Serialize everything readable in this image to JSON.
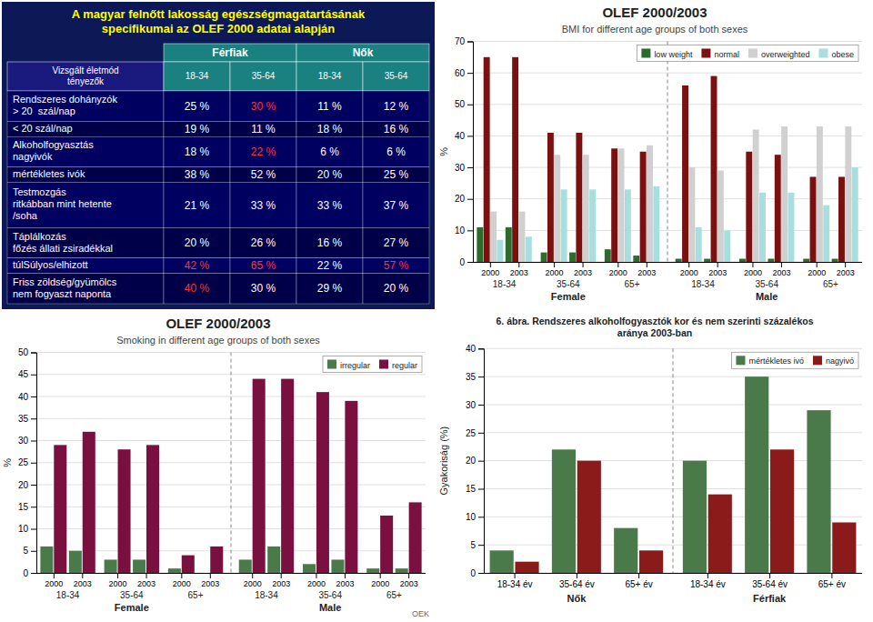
{
  "chart_data": [
    {
      "type": "table",
      "title": "A magyar felnőtt lakosság egészségmagatartásának\nspecifikumai az OLEF 2000 adatai alapján",
      "column_groups": [
        "Férfiak",
        "Nők"
      ],
      "columns": [
        "Vizsgált életmód\ntényezők",
        "18-34",
        "35-64",
        "18-34",
        "35-64"
      ],
      "rows": [
        {
          "label": "Rendszeres dohányzók\n> 20  szál/nap",
          "values": [
            25,
            30,
            11,
            12
          ],
          "value_labels": [
            "25 %",
            "30 %",
            "11 %",
            "12 %"
          ],
          "colors": [
            "#ffffff",
            "#ff3333",
            "#ffffff",
            "#ffffff"
          ]
        },
        {
          "label": "< 20 szál/nap",
          "values": [
            19,
            11,
            18,
            16
          ],
          "value_labels": [
            "19 %",
            "11 %",
            "18 %",
            "16 %"
          ],
          "colors": [
            "#ffffff",
            "#ffffff",
            "#ffffff",
            "#ffffff"
          ]
        },
        {
          "label": "Alkoholfogyasztás\nnagyivók",
          "values": [
            18,
            22,
            6,
            6
          ],
          "value_labels": [
            "18 %",
            "22 %",
            "6 %",
            "6 %"
          ],
          "colors": [
            "#ffffff",
            "#ff3333",
            "#ffffff",
            "#ffffff"
          ]
        },
        {
          "label": "mértékletes ivók",
          "values": [
            38,
            52,
            20,
            25
          ],
          "value_labels": [
            "38 %",
            "52 %",
            "20 %",
            "25 %"
          ],
          "colors": [
            "#ffffff",
            "#ffffff",
            "#ffffff",
            "#ffffff"
          ]
        },
        {
          "label": "Testmozgás\nritkábban mint hetente\n/soha",
          "values": [
            21,
            33,
            33,
            37
          ],
          "value_labels": [
            "21 %",
            "33 %",
            "33 %",
            "37 %"
          ],
          "colors": [
            "#ffffff",
            "#ffffff",
            "#ffffff",
            "#ffffff"
          ]
        },
        {
          "label": "Táplálkozás\nfőzés állati zsiradékkal",
          "values": [
            20,
            26,
            16,
            27
          ],
          "value_labels": [
            "20 %",
            "26 %",
            "16 %",
            "27 %"
          ],
          "colors": [
            "#ffffff",
            "#ffffff",
            "#ffffff",
            "#ffffff"
          ]
        },
        {
          "label": "túlSúlyos/elhizott",
          "values": [
            42,
            65,
            22,
            57
          ],
          "value_labels": [
            "42 %",
            "65 %",
            "22 %",
            "57 %"
          ],
          "colors": [
            "#ff3333",
            "#ff3333",
            "#ffffff",
            "#ff3333"
          ]
        },
        {
          "label": "Friss zöldség/gyümölcs\nnem fogyaszt naponta",
          "values": [
            40,
            30,
            29,
            20
          ],
          "value_labels": [
            "40 %",
            "30 %",
            "29 %",
            "20 %"
          ],
          "colors": [
            "#ff3333",
            "#ffffff",
            "#ffffff",
            "#ffffff"
          ]
        }
      ]
    },
    {
      "type": "bar",
      "title": "OLEF 2000/2003",
      "subtitle": "BMI for different age groups of both sexes",
      "y_label": "%",
      "categories": [
        "2000",
        "2003",
        "2000",
        "2003",
        "2000",
        "2003",
        "2000",
        "2003",
        "2000",
        "2003",
        "2000",
        "2003"
      ],
      "age_groups": [
        "18-34",
        "35-64",
        "65+",
        "18-34",
        "35-64",
        "65+"
      ],
      "groups": [
        "Female",
        "Male"
      ],
      "series": [
        {
          "name": "low weight",
          "color": "#2d6b2d",
          "values": [
            11,
            11,
            3,
            3,
            4,
            2,
            1,
            1,
            1,
            1,
            1,
            1
          ]
        },
        {
          "name": "normal",
          "color": "#7a1010",
          "values": [
            65,
            65,
            41,
            41,
            36,
            35,
            56,
            59,
            35,
            34,
            27,
            27
          ]
        },
        {
          "name": "overweighted",
          "color": "#d0d0d0",
          "values": [
            16,
            16,
            34,
            34,
            36,
            37,
            30,
            29,
            42,
            43,
            43,
            43
          ]
        },
        {
          "name": "obese",
          "color": "#a8dede",
          "values": [
            7,
            8,
            23,
            23,
            23,
            24,
            11,
            10,
            22,
            22,
            18,
            30
          ]
        }
      ],
      "ylim": [
        0,
        70
      ],
      "yticks": [
        0,
        10,
        20,
        30,
        40,
        50,
        60,
        70
      ],
      "grid": true,
      "legend": "upper right"
    },
    {
      "type": "bar",
      "title": "OLEF 2000/2003",
      "subtitle": "Smoking in different age groups of both sexes",
      "y_label": "%",
      "categories": [
        "2000",
        "2003",
        "2000",
        "2003",
        "2000",
        "2003",
        "2000",
        "2003",
        "2000",
        "2003",
        "2000",
        "2003"
      ],
      "age_groups": [
        "18-34",
        "35-64",
        "65+",
        "18-34",
        "35-64",
        "65+"
      ],
      "groups": [
        "Female",
        "Male"
      ],
      "series": [
        {
          "name": "irregular",
          "color": "#4a7a4a",
          "values": [
            6,
            5,
            3,
            3,
            1,
            0,
            3,
            6,
            2,
            3,
            1,
            1
          ]
        },
        {
          "name": "regular",
          "color": "#7a1040",
          "values": [
            29,
            32,
            28,
            29,
            4,
            6,
            44,
            44,
            41,
            39,
            13,
            16
          ]
        }
      ],
      "ylim": [
        0,
        50
      ],
      "yticks": [
        0,
        5,
        10,
        15,
        20,
        25,
        30,
        35,
        40,
        45,
        50
      ],
      "grid": true,
      "legend": "upper right",
      "annotations": [
        "OEK"
      ]
    },
    {
      "type": "bar",
      "title": "6. ábra. Rendszeres alkoholfogyasztók kor és nem szerinti százalékos\naránya 2003-ban",
      "y_label": "Gyakoriság (%)",
      "categories": [
        "18-34 év",
        "35-64 év",
        "65+ év",
        "18-34 év",
        "35-64 év",
        "65+ év"
      ],
      "groups": [
        "Nők",
        "Férfiak"
      ],
      "series": [
        {
          "name": "mértékletes ivó",
          "color": "#4a7a4a",
          "values": [
            4,
            22,
            8,
            20,
            35,
            29
          ]
        },
        {
          "name": "nagyivó",
          "color": "#8b1a1a",
          "values": [
            2,
            20,
            4,
            14,
            22,
            9
          ]
        }
      ],
      "ylim": [
        0,
        40
      ],
      "yticks": [
        0,
        5,
        10,
        15,
        20,
        25,
        30,
        35,
        40
      ],
      "grid": true,
      "legend": "upper right"
    }
  ]
}
